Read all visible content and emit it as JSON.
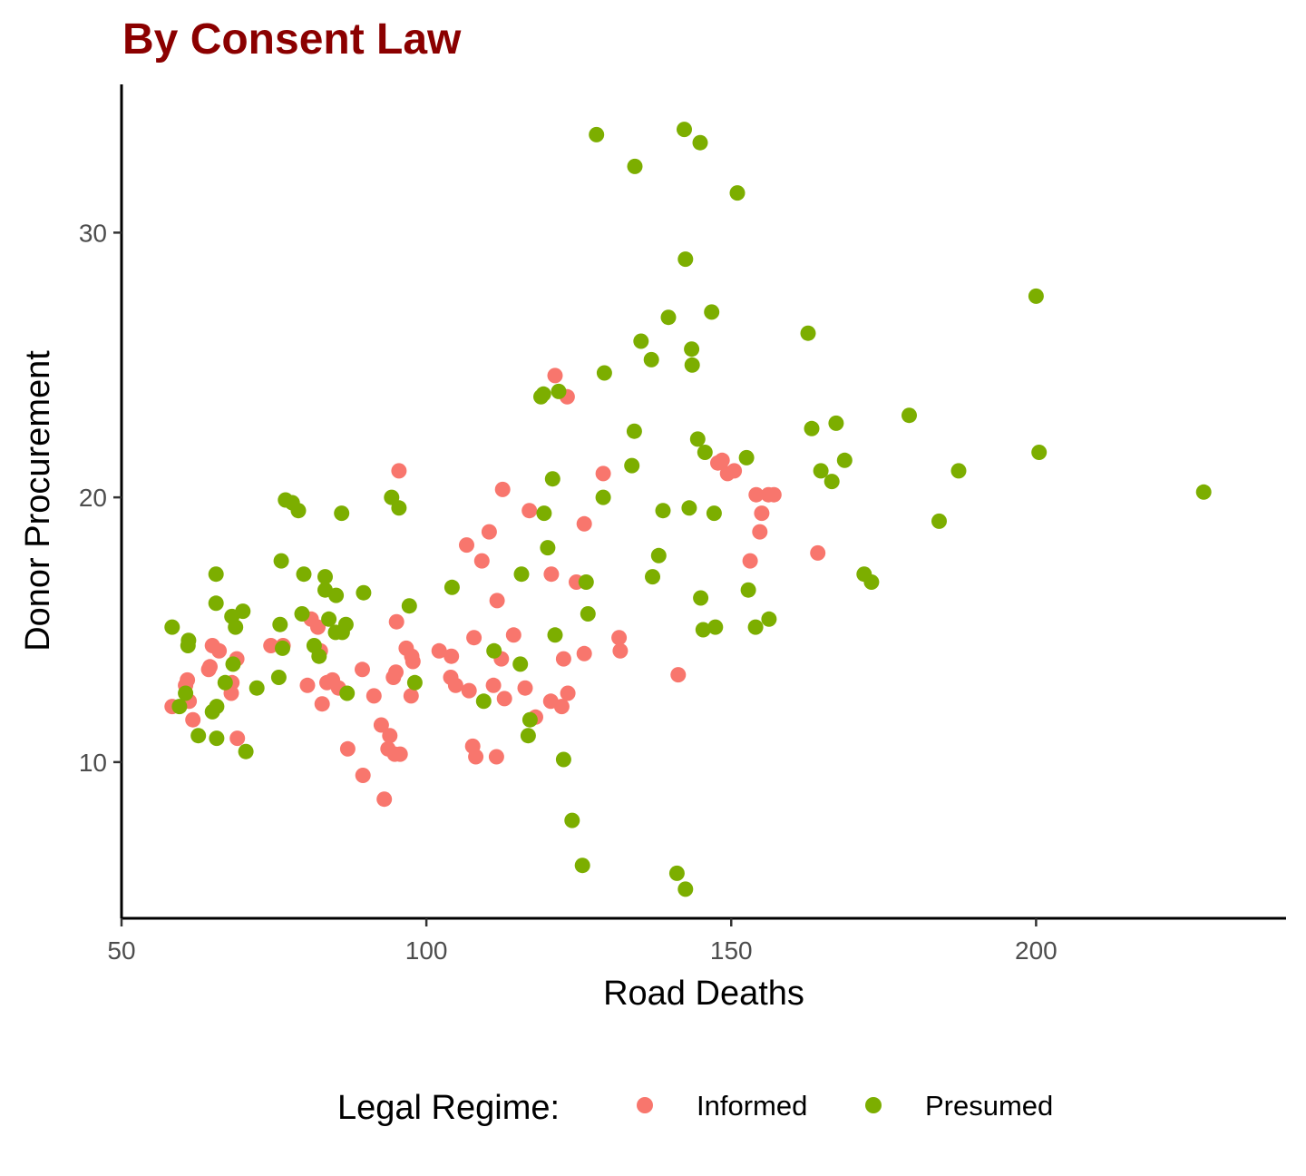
{
  "chart_data": {
    "type": "scatter",
    "title": "By Consent Law",
    "xlabel": "Road Deaths",
    "ylabel": "Donor Procurement",
    "xlim": [
      50,
      241
    ],
    "ylim": [
      4.1,
      35.6
    ],
    "xticks": [
      50,
      100,
      150,
      200
    ],
    "yticks": [
      10,
      20,
      30
    ],
    "grid": false,
    "legend": {
      "title": "Legal Regime:",
      "position": "bottom"
    },
    "colors": {
      "title": "#8b0000",
      "Informed": "#f8766d",
      "Presumed": "#7cae00"
    },
    "series": [
      {
        "name": "Informed",
        "color": "#f8766d",
        "points": [
          [
            58.3,
            12.1
          ],
          [
            60.8,
            13.1
          ],
          [
            60.5,
            12.9
          ],
          [
            61.1,
            12.3
          ],
          [
            61.7,
            11.6
          ],
          [
            64.3,
            13.5
          ],
          [
            64.5,
            13.6
          ],
          [
            64.9,
            14.4
          ],
          [
            66.0,
            14.2
          ],
          [
            68.1,
            13.0
          ],
          [
            68.0,
            12.6
          ],
          [
            68.9,
            13.9
          ],
          [
            69.0,
            10.9
          ],
          [
            74.5,
            14.4
          ],
          [
            76.5,
            14.4
          ],
          [
            80.5,
            12.9
          ],
          [
            81.1,
            15.4
          ],
          [
            82.2,
            15.1
          ],
          [
            82.6,
            14.2
          ],
          [
            82.9,
            12.2
          ],
          [
            83.7,
            13.0
          ],
          [
            84.6,
            13.1
          ],
          [
            85.6,
            12.8
          ],
          [
            87.1,
            10.5
          ],
          [
            89.5,
            13.5
          ],
          [
            89.6,
            9.5
          ],
          [
            91.4,
            12.5
          ],
          [
            92.6,
            11.4
          ],
          [
            93.1,
            8.6
          ],
          [
            93.7,
            10.5
          ],
          [
            94.0,
            11.0
          ],
          [
            94.6,
            13.2
          ],
          [
            94.8,
            10.3
          ],
          [
            95.0,
            13.4
          ],
          [
            95.1,
            15.3
          ],
          [
            95.5,
            21.0
          ],
          [
            95.7,
            10.3
          ],
          [
            96.7,
            14.3
          ],
          [
            97.5,
            12.5
          ],
          [
            97.8,
            13.8
          ],
          [
            97.6,
            14.0
          ],
          [
            102.1,
            14.2
          ],
          [
            104.1,
            14.0
          ],
          [
            104.0,
            13.2
          ],
          [
            104.8,
            12.9
          ],
          [
            106.6,
            18.2
          ],
          [
            107.0,
            12.7
          ],
          [
            107.6,
            10.6
          ],
          [
            107.8,
            14.7
          ],
          [
            108.1,
            10.2
          ],
          [
            109.1,
            17.6
          ],
          [
            110.3,
            18.7
          ],
          [
            111.0,
            12.9
          ],
          [
            111.6,
            16.1
          ],
          [
            111.5,
            10.2
          ],
          [
            112.3,
            13.9
          ],
          [
            112.5,
            20.3
          ],
          [
            112.8,
            12.4
          ],
          [
            114.3,
            14.8
          ],
          [
            116.2,
            12.8
          ],
          [
            116.9,
            19.5
          ],
          [
            117.9,
            11.7
          ],
          [
            120.4,
            12.3
          ],
          [
            120.5,
            17.1
          ],
          [
            121.1,
            24.6
          ],
          [
            122.2,
            12.1
          ],
          [
            122.5,
            13.9
          ],
          [
            123.1,
            23.8
          ],
          [
            123.2,
            12.6
          ],
          [
            124.6,
            16.8
          ],
          [
            125.9,
            14.1
          ],
          [
            125.9,
            19.0
          ],
          [
            129.0,
            20.9
          ],
          [
            131.6,
            14.7
          ],
          [
            131.8,
            14.2
          ],
          [
            141.3,
            13.3
          ],
          [
            147.8,
            21.3
          ],
          [
            148.5,
            21.4
          ],
          [
            149.4,
            20.9
          ],
          [
            150.5,
            21.0
          ],
          [
            153.1,
            17.6
          ],
          [
            154.1,
            20.1
          ],
          [
            154.7,
            18.7
          ],
          [
            155.0,
            19.4
          ],
          [
            156.1,
            20.1
          ],
          [
            157.0,
            20.1
          ],
          [
            164.2,
            17.9
          ]
        ]
      },
      {
        "name": "Presumed",
        "color": "#7cae00",
        "points": [
          [
            58.3,
            15.1
          ],
          [
            59.5,
            12.1
          ],
          [
            60.5,
            12.6
          ],
          [
            60.9,
            14.4
          ],
          [
            61.0,
            14.6
          ],
          [
            62.6,
            11.0
          ],
          [
            64.9,
            11.9
          ],
          [
            65.5,
            17.1
          ],
          [
            65.5,
            16.0
          ],
          [
            65.6,
            12.1
          ],
          [
            65.6,
            10.9
          ],
          [
            67.0,
            13.0
          ],
          [
            68.1,
            15.5
          ],
          [
            68.3,
            13.7
          ],
          [
            68.7,
            15.1
          ],
          [
            69.9,
            15.7
          ],
          [
            70.4,
            10.4
          ],
          [
            72.2,
            12.8
          ],
          [
            75.8,
            13.2
          ],
          [
            76.0,
            15.2
          ],
          [
            76.2,
            17.6
          ],
          [
            76.4,
            14.3
          ],
          [
            76.9,
            19.9
          ],
          [
            78.0,
            19.8
          ],
          [
            79.0,
            19.5
          ],
          [
            79.6,
            15.6
          ],
          [
            79.9,
            17.1
          ],
          [
            81.6,
            14.4
          ],
          [
            82.4,
            14.0
          ],
          [
            83.4,
            17.0
          ],
          [
            83.4,
            16.5
          ],
          [
            84.0,
            15.4
          ],
          [
            85.2,
            16.3
          ],
          [
            85.1,
            14.9
          ],
          [
            86.1,
            19.4
          ],
          [
            86.2,
            14.9
          ],
          [
            86.8,
            15.2
          ],
          [
            87.0,
            12.6
          ],
          [
            89.7,
            16.4
          ],
          [
            94.3,
            20.0
          ],
          [
            95.5,
            19.6
          ],
          [
            97.2,
            15.9
          ],
          [
            98.1,
            13.0
          ],
          [
            104.2,
            16.6
          ],
          [
            109.4,
            12.3
          ],
          [
            111.1,
            14.2
          ],
          [
            115.6,
            17.1
          ],
          [
            115.4,
            13.7
          ],
          [
            116.7,
            11.0
          ],
          [
            117.0,
            11.6
          ],
          [
            118.8,
            23.8
          ],
          [
            119.2,
            23.9
          ],
          [
            119.3,
            19.4
          ],
          [
            119.9,
            18.1
          ],
          [
            120.7,
            20.7
          ],
          [
            121.1,
            14.8
          ],
          [
            121.7,
            24.0
          ],
          [
            122.5,
            10.1
          ],
          [
            123.9,
            7.8
          ],
          [
            125.6,
            6.1
          ],
          [
            126.2,
            16.8
          ],
          [
            126.5,
            15.6
          ],
          [
            127.9,
            33.7
          ],
          [
            129.0,
            20.0
          ],
          [
            129.2,
            24.7
          ],
          [
            133.7,
            21.2
          ],
          [
            134.1,
            22.5
          ],
          [
            134.2,
            32.5
          ],
          [
            135.2,
            25.9
          ],
          [
            136.9,
            25.2
          ],
          [
            137.1,
            17.0
          ],
          [
            138.1,
            17.8
          ],
          [
            138.8,
            19.5
          ],
          [
            139.7,
            26.8
          ],
          [
            141.1,
            5.8
          ],
          [
            142.3,
            33.9
          ],
          [
            142.5,
            29.0
          ],
          [
            142.5,
            5.2
          ],
          [
            143.1,
            19.6
          ],
          [
            143.5,
            25.6
          ],
          [
            143.6,
            25.0
          ],
          [
            144.5,
            22.2
          ],
          [
            144.9,
            33.4
          ],
          [
            145.0,
            16.2
          ],
          [
            145.4,
            15.0
          ],
          [
            145.7,
            21.7
          ],
          [
            146.8,
            27.0
          ],
          [
            147.2,
            19.4
          ],
          [
            147.4,
            15.1
          ],
          [
            151.0,
            31.5
          ],
          [
            152.5,
            21.5
          ],
          [
            152.8,
            16.5
          ],
          [
            154.0,
            15.1
          ],
          [
            156.2,
            15.4
          ],
          [
            162.6,
            26.2
          ],
          [
            163.2,
            22.6
          ],
          [
            164.7,
            21.0
          ],
          [
            166.5,
            20.6
          ],
          [
            167.2,
            22.8
          ],
          [
            168.6,
            21.4
          ],
          [
            171.8,
            17.1
          ],
          [
            173.0,
            16.8
          ],
          [
            179.2,
            23.1
          ],
          [
            184.1,
            19.1
          ],
          [
            187.3,
            21.0
          ],
          [
            200.0,
            27.6
          ],
          [
            200.5,
            21.7
          ],
          [
            227.5,
            20.2
          ]
        ]
      }
    ]
  }
}
